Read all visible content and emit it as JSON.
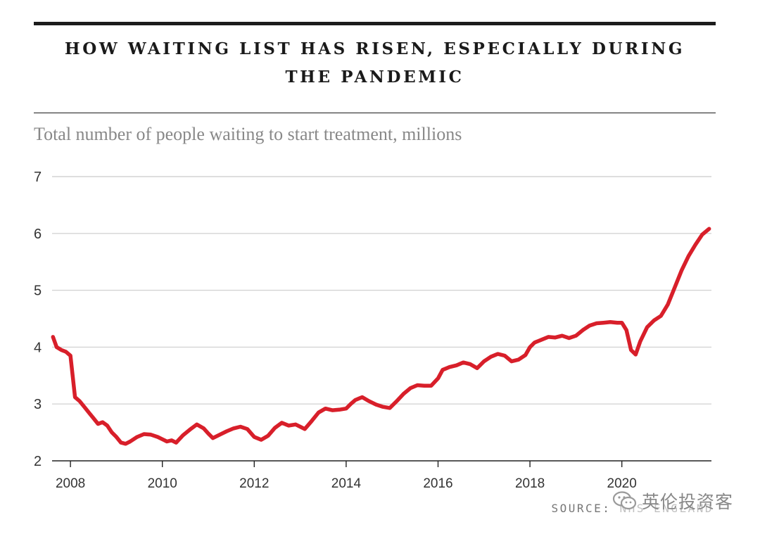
{
  "header": {
    "title_line1": "HOW WAITING LIST HAS RISEN, ESPECIALLY DURING",
    "title_line2": "THE PANDEMIC",
    "subtitle": "Total number of people waiting to start treatment, millions"
  },
  "footer": {
    "source": "SOURCE: NHS ENGLAND",
    "watermark": "英伦投资客",
    "watermark_icon": "wechat-icon"
  },
  "colors": {
    "line": "#d81f2a",
    "grid": "#d4d4d4",
    "axis": "#222222"
  },
  "chart_data": {
    "type": "line",
    "title": "HOW WAITING LIST HAS RISEN, ESPECIALLY DURING THE PANDEMIC",
    "ylabel": "Total number of people waiting to start treatment, millions",
    "xlim": [
      2007.6,
      2021.95
    ],
    "ylim": [
      2,
      7
    ],
    "y_ticks": [
      2,
      3,
      4,
      5,
      6,
      7
    ],
    "x_ticks": [
      2008,
      2010,
      2012,
      2014,
      2016,
      2018,
      2020
    ],
    "grid": true,
    "legend": "none",
    "series": [
      {
        "x": [
          2007.62,
          2007.7,
          2007.8,
          2007.9,
          2008.0,
          2008.1,
          2008.2,
          2008.3,
          2008.4,
          2008.5,
          2008.6,
          2008.7,
          2008.8,
          2008.9,
          2009.0,
          2009.1,
          2009.2,
          2009.3,
          2009.45,
          2009.6,
          2009.75,
          2009.9,
          2010.0,
          2010.1,
          2010.2,
          2010.3,
          2010.45,
          2010.6,
          2010.75,
          2010.9,
          2011.0,
          2011.1,
          2011.25,
          2011.4,
          2011.55,
          2011.7,
          2011.85,
          2012.0,
          2012.15,
          2012.3,
          2012.45,
          2012.6,
          2012.75,
          2012.9,
          2013.0,
          2013.1,
          2013.25,
          2013.4,
          2013.55,
          2013.7,
          2013.85,
          2014.0,
          2014.1,
          2014.2,
          2014.35,
          2014.5,
          2014.65,
          2014.8,
          2014.95,
          2015.1,
          2015.25,
          2015.4,
          2015.55,
          2015.7,
          2015.85,
          2016.0,
          2016.1,
          2016.25,
          2016.4,
          2016.55,
          2016.7,
          2016.85,
          2017.0,
          2017.15,
          2017.3,
          2017.45,
          2017.6,
          2017.75,
          2017.9,
          2018.0,
          2018.1,
          2018.25,
          2018.4,
          2018.55,
          2018.7,
          2018.85,
          2019.0,
          2019.15,
          2019.3,
          2019.45,
          2019.6,
          2019.75,
          2019.9,
          2020.0,
          2020.1,
          2020.2,
          2020.3,
          2020.4,
          2020.55,
          2020.7,
          2020.85,
          2021.0,
          2021.15,
          2021.3,
          2021.45,
          2021.6,
          2021.75,
          2021.9
        ],
        "y": [
          4.18,
          4.0,
          3.95,
          3.92,
          3.85,
          3.12,
          3.05,
          2.95,
          2.85,
          2.75,
          2.65,
          2.68,
          2.62,
          2.5,
          2.42,
          2.32,
          2.3,
          2.34,
          2.42,
          2.47,
          2.46,
          2.42,
          2.38,
          2.34,
          2.36,
          2.32,
          2.45,
          2.55,
          2.64,
          2.57,
          2.48,
          2.4,
          2.46,
          2.52,
          2.57,
          2.6,
          2.56,
          2.42,
          2.37,
          2.44,
          2.58,
          2.67,
          2.62,
          2.64,
          2.6,
          2.56,
          2.7,
          2.85,
          2.92,
          2.89,
          2.9,
          2.92,
          3.0,
          3.07,
          3.12,
          3.05,
          2.99,
          2.95,
          2.93,
          3.05,
          3.18,
          3.28,
          3.33,
          3.32,
          3.32,
          3.45,
          3.6,
          3.65,
          3.68,
          3.73,
          3.7,
          3.63,
          3.75,
          3.83,
          3.88,
          3.85,
          3.75,
          3.78,
          3.86,
          4.0,
          4.08,
          4.13,
          4.18,
          4.17,
          4.2,
          4.16,
          4.2,
          4.3,
          4.38,
          4.42,
          4.43,
          4.44,
          4.43,
          4.43,
          4.3,
          3.95,
          3.87,
          4.1,
          4.35,
          4.47,
          4.55,
          4.75,
          5.05,
          5.35,
          5.6,
          5.8,
          5.98,
          6.08
        ]
      }
    ]
  }
}
